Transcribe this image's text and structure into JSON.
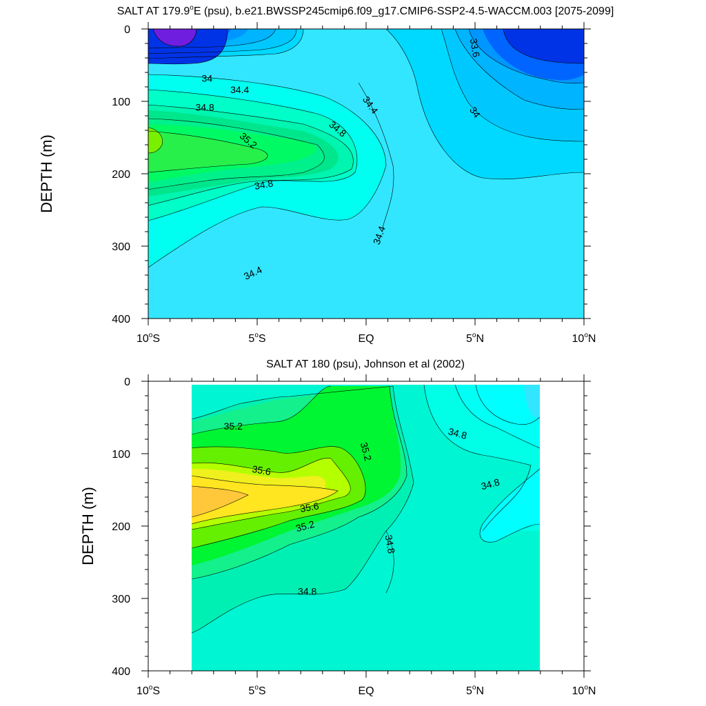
{
  "chart_data": [
    {
      "type": "contour",
      "title": "SALT AT 179.9°E (psu), b.e21.BWSSP245cmip6.f09_g17.CMIP6-SSP2-4.5-WACCM.003 [2075-2099]",
      "title_main": "SALT AT 179.9",
      "title_sup": "o",
      "title_rest": "E (psu), b.e21.BWSSP245cmip6.f09_g17.CMIP6-SSP2-4.5-WACCM.003 [2075-2099]",
      "ylabel": "DEPTH (m)",
      "xlim": [
        -10,
        10
      ],
      "ylim": [
        400,
        0
      ],
      "x_ticks": [
        {
          "value": -10,
          "num": "10",
          "sup": "o",
          "hemi": "S"
        },
        {
          "value": -5,
          "num": "5",
          "sup": "o",
          "hemi": "S"
        },
        {
          "value": 0,
          "num": "EQ",
          "sup": "",
          "hemi": ""
        },
        {
          "value": 5,
          "num": "5",
          "sup": "o",
          "hemi": "N"
        },
        {
          "value": 10,
          "num": "10",
          "sup": "o",
          "hemi": "N"
        }
      ],
      "y_ticks": [
        "0",
        "100",
        "200",
        "300",
        "400"
      ],
      "y_tick_values": [
        0,
        100,
        200,
        300,
        400
      ],
      "contour_levels": [
        33.2,
        33.4,
        33.6,
        33.8,
        34.0,
        34.2,
        34.4,
        34.6,
        34.8,
        35.0,
        35.2,
        35.4
      ],
      "contour_labels": [
        {
          "text": "34",
          "x": -7.3,
          "y": 68,
          "angle": 0
        },
        {
          "text": "34.4",
          "x": -5.8,
          "y": 84,
          "angle": 0
        },
        {
          "text": "34.8",
          "x": -7.4,
          "y": 108,
          "angle": 0
        },
        {
          "text": "35.2",
          "x": -5.4,
          "y": 154,
          "angle": 40
        },
        {
          "text": "34.8",
          "x": -1.3,
          "y": 138,
          "angle": 40
        },
        {
          "text": "34.4",
          "x": 0.2,
          "y": 105,
          "angle": 55
        },
        {
          "text": "33.6",
          "x": 5.0,
          "y": 26,
          "angle": 80
        },
        {
          "text": "34",
          "x": 5.0,
          "y": 115,
          "angle": 55
        },
        {
          "text": "34.8",
          "x": -4.7,
          "y": 215,
          "angle": -10
        },
        {
          "text": "34.4",
          "x": 0.6,
          "y": 285,
          "angle": -70
        },
        {
          "text": "34.4",
          "x": -5.2,
          "y": 337,
          "angle": -25
        }
      ]
    },
    {
      "type": "contour",
      "title": "SALT AT 180 (psu), Johnson et al (2002)",
      "ylabel": "DEPTH (m)",
      "xlim": [
        -10,
        10
      ],
      "ylim": [
        400,
        0
      ],
      "data_x_range": [
        -8,
        8
      ],
      "x_ticks": [
        {
          "value": -10,
          "num": "10",
          "sup": "o",
          "hemi": "S"
        },
        {
          "value": -5,
          "num": "5",
          "sup": "o",
          "hemi": "S"
        },
        {
          "value": 0,
          "num": "EQ",
          "sup": "",
          "hemi": ""
        },
        {
          "value": 5,
          "num": "5",
          "sup": "o",
          "hemi": "N"
        },
        {
          "value": 10,
          "num": "10",
          "sup": "o",
          "hemi": "N"
        }
      ],
      "y_ticks": [
        "0",
        "100",
        "200",
        "300",
        "400"
      ],
      "y_tick_values": [
        0,
        100,
        200,
        300,
        400
      ],
      "contour_levels": [
        34.4,
        34.6,
        34.8,
        35.0,
        35.2,
        35.4,
        35.6,
        35.8
      ],
      "contour_labels": [
        {
          "text": "35.2",
          "x": -6.1,
          "y": 62,
          "angle": 0
        },
        {
          "text": "35.2",
          "x": 0.0,
          "y": 97,
          "angle": 75
        },
        {
          "text": "34.8",
          "x": 4.2,
          "y": 72,
          "angle": 15
        },
        {
          "text": "35.6",
          "x": -4.8,
          "y": 123,
          "angle": 10
        },
        {
          "text": "34.8",
          "x": 5.7,
          "y": 142,
          "angle": -15
        },
        {
          "text": "35.6",
          "x": -2.6,
          "y": 174,
          "angle": -10
        },
        {
          "text": "35.2",
          "x": -2.8,
          "y": 200,
          "angle": -15
        },
        {
          "text": "34.8",
          "x": 1.1,
          "y": 225,
          "angle": 80
        },
        {
          "text": "34.8",
          "x": -2.7,
          "y": 290,
          "angle": 0
        }
      ]
    }
  ]
}
